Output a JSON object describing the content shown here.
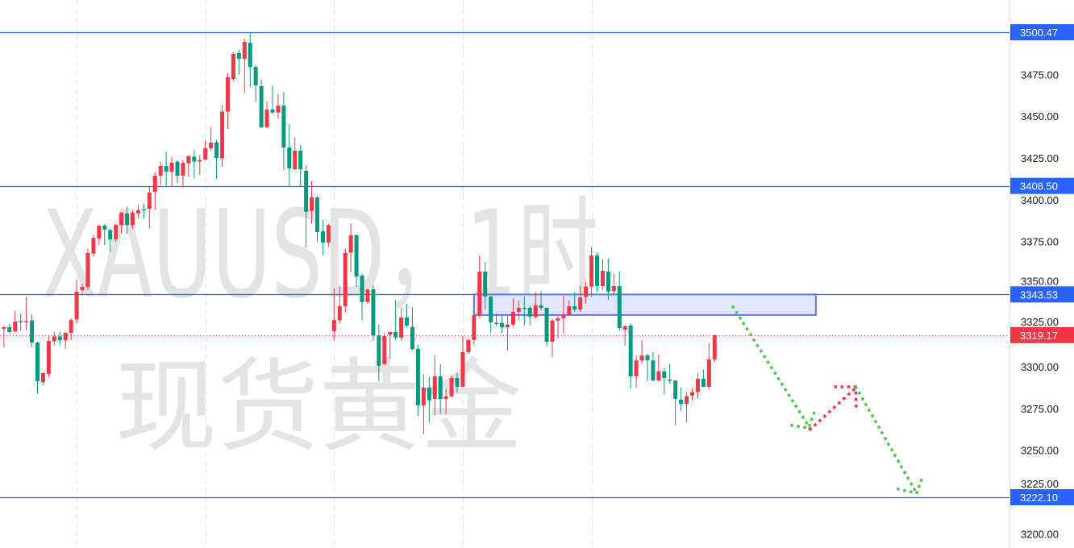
{
  "watermark": {
    "symbol_line": "XAUUSD，1时",
    "name_line": "现货黄金"
  },
  "colors": {
    "up": "#f23645",
    "down": "#089981",
    "level_line": "#2962ff",
    "zone_fill": "#dfe3fb",
    "zone_border": "#5b78ef",
    "projection_down": "#4cc94c",
    "projection_up": "#f23645",
    "last_price": "#f23645",
    "grid": "#dfe1e8"
  },
  "chart_data": {
    "type": "candlestick",
    "title": "",
    "xlabel": "",
    "ylabel": "",
    "ylim": [
      3191.7,
      3519.8
    ],
    "xlim": [
      -0.7,
      179.7
    ],
    "grid": "vertical session separators only",
    "session_separators": [
      13,
      36,
      59,
      82,
      105
    ],
    "price_ticks": [
      "3475.00",
      "3450.00",
      "3425.00",
      "3400.00",
      "3375.00",
      "3350.00",
      "3325.00",
      "3300.00",
      "3275.00",
      "3250.00",
      "3225.00",
      "3200.00"
    ],
    "candles_ohlc": [
      [
        3323,
        3324,
        3312,
        3324
      ],
      [
        3324,
        3326,
        3320,
        3321
      ],
      [
        3321.5,
        3333.6,
        3321,
        3327.3
      ],
      [
        3327.5,
        3332,
        3322,
        3327
      ],
      [
        3327,
        3342,
        3322,
        3327.5
      ],
      [
        3328,
        3331.6,
        3312,
        3314.7
      ],
      [
        3314.7,
        3315,
        3284,
        3291.6
      ],
      [
        3291,
        3297,
        3289,
        3296.4
      ],
      [
        3296,
        3319,
        3294,
        3315.7
      ],
      [
        3315.5,
        3321,
        3313,
        3318.5
      ],
      [
        3318.5,
        3321,
        3313,
        3316
      ],
      [
        3316,
        3321,
        3311,
        3320.5
      ],
      [
        3320.5,
        3329,
        3316,
        3328.2
      ],
      [
        3328.5,
        3352.4,
        3326,
        3345.2
      ],
      [
        3346,
        3350,
        3343,
        3348
      ],
      [
        3348,
        3371,
        3346,
        3368.3
      ],
      [
        3368,
        3379,
        3366,
        3377.4
      ],
      [
        3377,
        3385,
        3373,
        3384.7
      ],
      [
        3384.7,
        3385.5,
        3373,
        3382.3
      ],
      [
        3382,
        3383,
        3369,
        3376.5
      ],
      [
        3376.5,
        3386,
        3375,
        3385.2
      ],
      [
        3385,
        3393,
        3380,
        3392.4
      ],
      [
        3392,
        3396,
        3380,
        3385
      ],
      [
        3385,
        3394,
        3383,
        3392.4
      ],
      [
        3392,
        3397,
        3389,
        3394
      ],
      [
        3394.5,
        3398,
        3389,
        3394
      ],
      [
        3394.8,
        3408,
        3383,
        3404.5
      ],
      [
        3405,
        3417,
        3394,
        3414.6
      ],
      [
        3414.6,
        3423,
        3409,
        3420.4
      ],
      [
        3420.4,
        3429,
        3408.5,
        3417
      ],
      [
        3417,
        3426,
        3408,
        3422.3
      ],
      [
        3423,
        3424,
        3410,
        3414.6
      ],
      [
        3414.6,
        3424,
        3407.5,
        3422.3
      ],
      [
        3422,
        3427,
        3414,
        3426.2
      ],
      [
        3426,
        3430,
        3413,
        3423
      ],
      [
        3423,
        3427,
        3415,
        3424
      ],
      [
        3424.3,
        3436,
        3424,
        3431
      ],
      [
        3431,
        3443.5,
        3429.5,
        3434.4
      ],
      [
        3434.5,
        3436,
        3412.7,
        3425.2
      ],
      [
        3425,
        3456.6,
        3420,
        3453
      ],
      [
        3453,
        3476,
        3442.6,
        3473.5
      ],
      [
        3472.5,
        3488.5,
        3471.5,
        3487.5
      ],
      [
        3488,
        3490,
        3475,
        3484.6
      ],
      [
        3484.6,
        3496.6,
        3464,
        3494.7
      ],
      [
        3494.2,
        3500.5,
        3467.5,
        3479.7
      ],
      [
        3479.7,
        3481,
        3458.8,
        3468.7
      ],
      [
        3468.2,
        3472.2,
        3443,
        3443.6
      ],
      [
        3443.6,
        3459,
        3443,
        3454.2
      ],
      [
        3454.2,
        3468.5,
        3451.5,
        3452.4
      ],
      [
        3452.4,
        3463.3,
        3448.7,
        3456.6
      ],
      [
        3456.6,
        3464.7,
        3418,
        3431.5
      ],
      [
        3431.5,
        3445.6,
        3408.5,
        3419
      ],
      [
        3418.5,
        3437.5,
        3418,
        3429.6
      ],
      [
        3429.6,
        3433,
        3408,
        3418.5
      ],
      [
        3417.5,
        3420.9,
        3371.7,
        3393
      ],
      [
        3393.5,
        3411.5,
        3386,
        3401.6
      ],
      [
        3401.6,
        3402.6,
        3375,
        3380.8
      ],
      [
        3381.3,
        3388,
        3367,
        3374.6
      ],
      [
        3374.6,
        3386,
        3372,
        3385
      ],
      [
        3321.5,
        3347.1,
        3316,
        3328.2
      ],
      [
        3328,
        3348.5,
        3326,
        3336.5
      ],
      [
        3336.5,
        3371,
        3333,
        3368.3
      ],
      [
        3368.5,
        3386,
        3357,
        3378.9
      ],
      [
        3378.9,
        3379.5,
        3348,
        3354.3
      ],
      [
        3354.8,
        3356,
        3328,
        3338.9
      ],
      [
        3339,
        3347,
        3337.9,
        3346.4
      ],
      [
        3346.6,
        3349,
        3315.8,
        3319
      ],
      [
        3319,
        3325.4,
        3291.6,
        3300.8
      ],
      [
        3301.8,
        3320.5,
        3301,
        3318.6
      ],
      [
        3319.5,
        3321,
        3305,
        3321
      ],
      [
        3321,
        3340.3,
        3316.5,
        3317.7
      ],
      [
        3317.7,
        3335.2,
        3316,
        3329.7
      ],
      [
        3329.7,
        3338,
        3323.6,
        3324.9
      ],
      [
        3324,
        3335.9,
        3310,
        3310.9
      ],
      [
        3310.9,
        3313.3,
        3270.8,
        3277.1
      ],
      [
        3277,
        3296,
        3260.2,
        3287.7
      ],
      [
        3287.7,
        3294,
        3267,
        3280.1
      ],
      [
        3281,
        3307,
        3271,
        3294.5
      ],
      [
        3294.5,
        3301.8,
        3272,
        3281
      ],
      [
        3281,
        3287,
        3272,
        3282.5
      ],
      [
        3282.5,
        3295,
        3282,
        3293.5
      ],
      [
        3293.5,
        3296.5,
        3284.5,
        3288.2
      ],
      [
        3288.2,
        3318.6,
        3288,
        3309
      ],
      [
        3309,
        3317.5,
        3308,
        3316.2
      ],
      [
        3316.2,
        3335,
        3313.3,
        3331.1
      ],
      [
        3331,
        3366.8,
        3329.5,
        3357.2
      ],
      [
        3357.2,
        3363,
        3334.6,
        3342.3
      ],
      [
        3342.3,
        3342.5,
        3320.5,
        3326.8
      ],
      [
        3326.5,
        3332,
        3324.5,
        3326
      ],
      [
        3326.5,
        3331.3,
        3320,
        3323.8
      ],
      [
        3323.8,
        3331,
        3310,
        3325.5
      ],
      [
        3325.5,
        3341,
        3324,
        3333.1
      ],
      [
        3333,
        3340,
        3328,
        3335.5
      ],
      [
        3335.5,
        3342.3,
        3325,
        3335
      ],
      [
        3335.5,
        3336.5,
        3325,
        3330.2
      ],
      [
        3330,
        3345,
        3329,
        3337
      ],
      [
        3337,
        3345.5,
        3334,
        3335.5
      ],
      [
        3335.5,
        3335.5,
        3312.7,
        3315.2
      ],
      [
        3315.2,
        3329,
        3306,
        3327.8
      ],
      [
        3327.8,
        3330.5,
        3317,
        3329.2
      ],
      [
        3329.2,
        3342.8,
        3320,
        3331.3
      ],
      [
        3331.3,
        3340,
        3330.8,
        3336.5
      ],
      [
        3336.5,
        3345,
        3333,
        3334.4
      ],
      [
        3334.4,
        3348.9,
        3333,
        3341.7
      ],
      [
        3342,
        3351,
        3338,
        3348.2
      ],
      [
        3348.2,
        3372,
        3342,
        3366.8
      ],
      [
        3366.8,
        3368.7,
        3345,
        3348.5
      ],
      [
        3348.5,
        3364.5,
        3346,
        3357.7
      ],
      [
        3357.2,
        3365,
        3340.2,
        3345.2
      ],
      [
        3345.5,
        3356,
        3343,
        3348.5
      ],
      [
        3348.5,
        3357.4,
        3322,
        3323.4
      ],
      [
        3322.4,
        3325,
        3312.7,
        3324.5
      ],
      [
        3324.9,
        3326,
        3287.2,
        3294.5
      ],
      [
        3294.5,
        3307,
        3287.7,
        3304
      ],
      [
        3304,
        3316,
        3302,
        3307
      ],
      [
        3307,
        3308,
        3291.6,
        3304
      ],
      [
        3304,
        3309,
        3291.5,
        3292
      ],
      [
        3292,
        3307.5,
        3291.5,
        3297.4
      ],
      [
        3297.4,
        3299.5,
        3283.7,
        3293.5
      ],
      [
        3292.5,
        3302,
        3290,
        3292
      ],
      [
        3292,
        3292,
        3265,
        3281
      ],
      [
        3280.5,
        3288,
        3274,
        3278
      ],
      [
        3278,
        3285,
        3267,
        3282.5
      ],
      [
        3283,
        3287.5,
        3280,
        3285
      ],
      [
        3285,
        3296.5,
        3281,
        3293
      ],
      [
        3293,
        3298.5,
        3288,
        3288.2
      ],
      [
        3288.2,
        3314.5,
        3286.5,
        3304.6
      ],
      [
        3304.6,
        3319.2,
        3303,
        3319.17
      ]
    ],
    "horizontal_levels": [
      {
        "price": 3500.47,
        "label": "3500.47"
      },
      {
        "price": 3408.5,
        "label": "3408.50"
      },
      {
        "price": 3343.53,
        "label": "3343.53"
      },
      {
        "price": 3222.1,
        "label": "3222.10"
      }
    ],
    "last_price": {
      "price": 3319.17,
      "label": "3319.17"
    },
    "zone": {
      "bar_start": 84,
      "bar_end": 145.1,
      "price_top": 3343.5,
      "price_bottom": 3331.2
    },
    "projection_paths": [
      {
        "color": "down",
        "points": [
          [
            130.3,
            3336.0
          ],
          [
            144.1,
            3263.1
          ]
        ]
      },
      {
        "color": "down",
        "points": [
          [
            140.8,
            3265.1
          ],
          [
            143.8,
            3263.6
          ],
          [
            145.0,
            3274.7
          ]
        ]
      },
      {
        "color": "up",
        "points": [
          [
            144.1,
            3262.7
          ],
          [
            152.3,
            3287.8
          ]
        ]
      },
      {
        "color": "up",
        "points": [
          [
            148.6,
            3288.2
          ],
          [
            152.2,
            3288.2
          ],
          [
            152.3,
            3276.2
          ]
        ]
      },
      {
        "color": "down",
        "points": [
          [
            152.3,
            3287.8
          ],
          [
            163.1,
            3224.5
          ]
        ]
      },
      {
        "color": "down",
        "points": [
          [
            159.8,
            3227.0
          ],
          [
            163.1,
            3224.5
          ],
          [
            164.3,
            3235.6
          ]
        ]
      }
    ]
  }
}
